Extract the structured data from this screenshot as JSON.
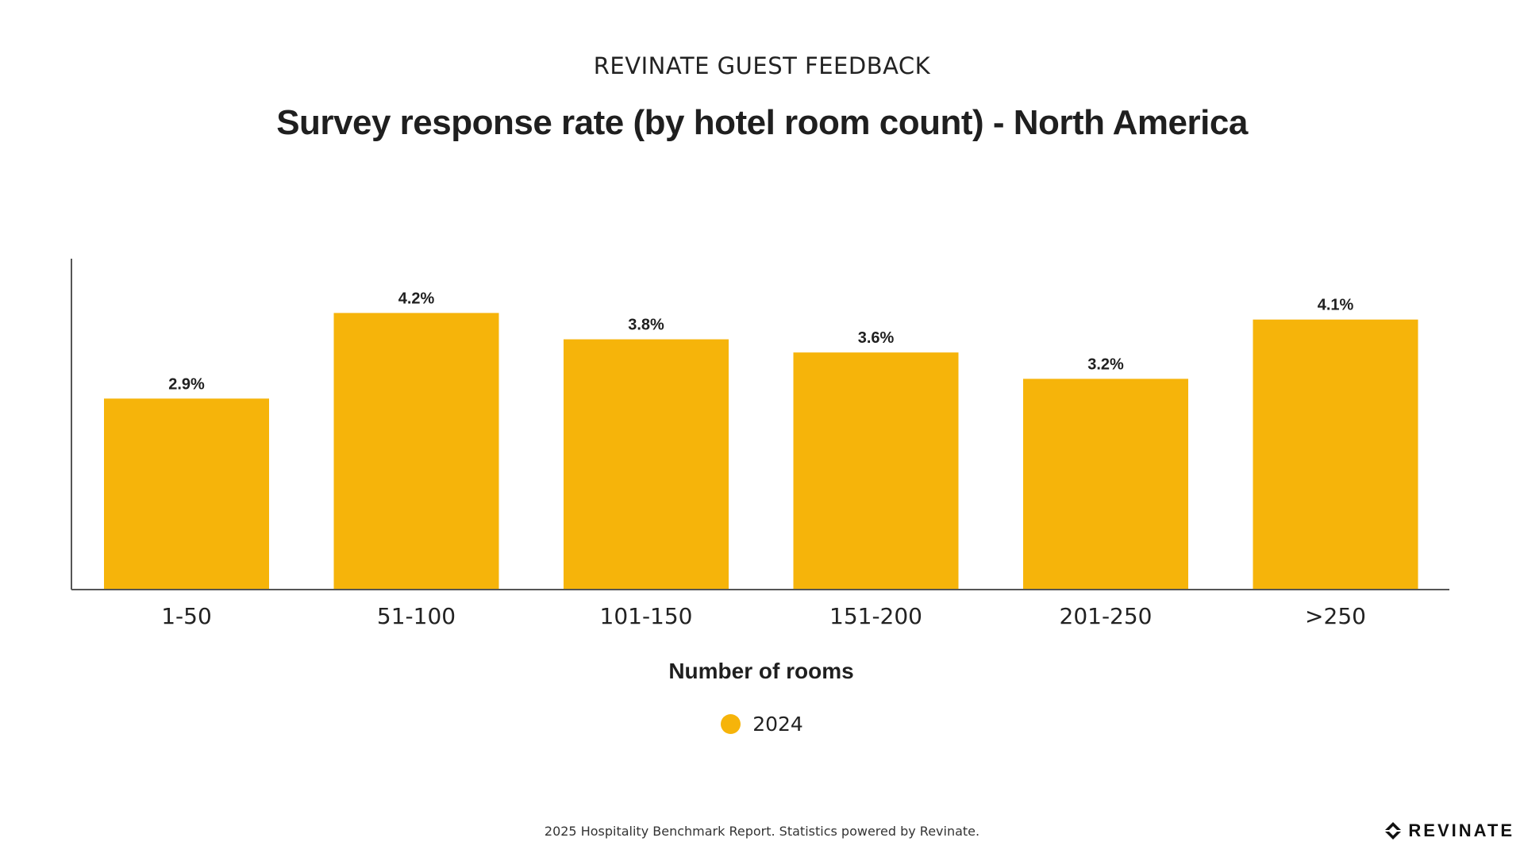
{
  "header": {
    "supertitle": "REVINATE GUEST FEEDBACK"
  },
  "chart_data": {
    "type": "bar",
    "title": "Survey response rate (by hotel room count) - North America",
    "xlabel": "Number of rooms",
    "ylabel": "",
    "categories": [
      "1-50",
      "51-100",
      "101-150",
      "151-200",
      "201-250",
      ">250"
    ],
    "series": [
      {
        "name": "2024",
        "values": [
          2.9,
          4.2,
          3.8,
          3.6,
          3.2,
          4.1
        ],
        "labels": [
          "2.9%",
          "4.2%",
          "3.8%",
          "3.6%",
          "3.2%",
          "4.1%"
        ]
      }
    ],
    "ylim": [
      0,
      5
    ],
    "grid": false,
    "legend_position": "bottom-center",
    "bar_color": "#F6B40A"
  },
  "legend": {
    "label": "2024",
    "color": "#F6B40A"
  },
  "footer": {
    "text": "2025 Hospitality Benchmark Report. Statistics powered by Revinate."
  },
  "brand": {
    "name": "REVINATE",
    "icon": "revinate-logo-icon"
  }
}
